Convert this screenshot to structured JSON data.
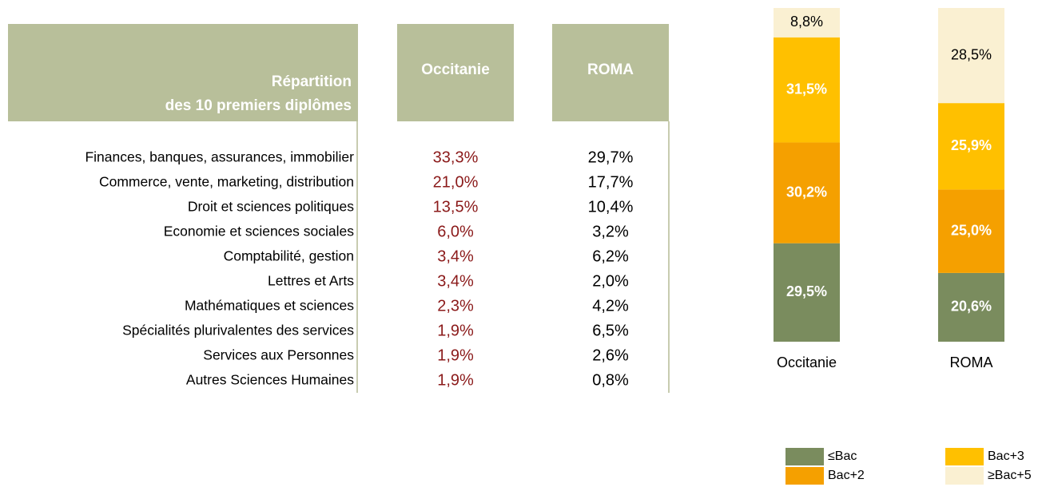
{
  "table": {
    "header_title": [
      "Répartition",
      "des 10 premiers diplômes"
    ],
    "columns": [
      "Occitanie",
      "ROMA"
    ],
    "rows": [
      [
        "Finances, banques, assurances, immobilier",
        "33,3%",
        "29,7%"
      ],
      [
        "Commerce, vente, marketing, distribution",
        "21,0%",
        "17,7%"
      ],
      [
        "Droit et sciences politiques",
        "13,5%",
        "10,4%"
      ],
      [
        "Economie et sciences sociales",
        "6,0%",
        "3,2%"
      ],
      [
        "Comptabilité, gestion",
        "3,4%",
        "6,2%"
      ],
      [
        "Lettres et Arts",
        "3,4%",
        "2,0%"
      ],
      [
        "Mathématiques et sciences",
        "2,3%",
        "4,2%"
      ],
      [
        "Spécialités plurivalentes des services",
        "1,9%",
        "6,5%"
      ],
      [
        "Services aux Personnes",
        "1,9%",
        "2,6%"
      ],
      [
        "Autres Sciences Humaines",
        "1,9%",
        "0,8%"
      ]
    ]
  },
  "chart_data": {
    "type": "stacked_bar",
    "categories": [
      "Occitanie",
      "ROMA"
    ],
    "series": [
      {
        "name": "≤Bac",
        "color": "#7a8c5e",
        "values": [
          29.5,
          20.6
        ],
        "value_labels": [
          "29,5%",
          "20,6%"
        ]
      },
      {
        "name": "Bac+2",
        "color": "#f5a000",
        "values": [
          30.2,
          25.0
        ],
        "value_labels": [
          "30,2%",
          "25,0%"
        ]
      },
      {
        "name": "Bac+3",
        "color": "#ffc000",
        "values": [
          31.5,
          25.9
        ],
        "value_labels": [
          "31,5%",
          "25,9%"
        ]
      },
      {
        "name": "≥Bac+5",
        "color": "#faf0d2",
        "values": [
          8.8,
          28.5
        ],
        "value_labels": [
          "8,8%",
          "28,5%"
        ]
      }
    ]
  }
}
